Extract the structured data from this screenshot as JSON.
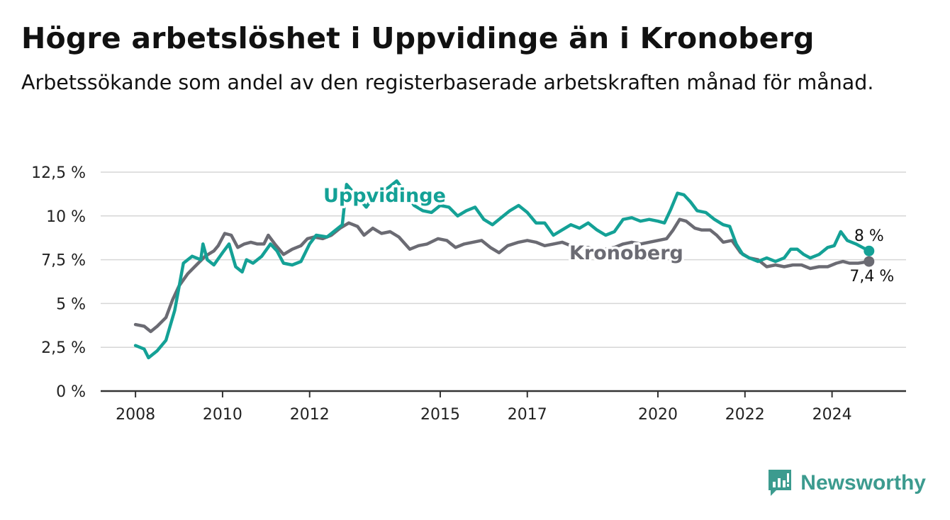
{
  "title": "Högre arbetslöshet i Uppvidinge än i Kronoberg",
  "subtitle": "Arbetssökande som andel av den registerbaserade arbetskraften månad för månad.",
  "brand": {
    "name": "Newsworthy",
    "icon": "bar-chart-logo-icon",
    "color": "#3c9b8f"
  },
  "chart_data": {
    "type": "line",
    "x_ticks": [
      {
        "value": 2008,
        "label": "2008"
      },
      {
        "value": 2010,
        "label": "2010"
      },
      {
        "value": 2012,
        "label": "2012"
      },
      {
        "value": 2015,
        "label": "2015"
      },
      {
        "value": 2017,
        "label": "2017"
      },
      {
        "value": 2020,
        "label": "2020"
      },
      {
        "value": 2022,
        "label": "2022"
      },
      {
        "value": 2024,
        "label": "2024"
      }
    ],
    "y_ticks": [
      {
        "value": 0,
        "label": "0 %"
      },
      {
        "value": 2.5,
        "label": "2,5 %"
      },
      {
        "value": 5,
        "label": "5 %"
      },
      {
        "value": 7.5,
        "label": "7,5 %"
      },
      {
        "value": 10,
        "label": "10 %"
      },
      {
        "value": 12.5,
        "label": "12,5 %"
      }
    ],
    "ylim": [
      0,
      12.5
    ],
    "xlim": [
      2007.2,
      2025.7
    ],
    "grid": true,
    "series": [
      {
        "name": "Uppvidinge",
        "color": "#14a196",
        "end_label": "8 %",
        "points": [
          [
            2008.0,
            2.6
          ],
          [
            2008.2,
            2.4
          ],
          [
            2008.3,
            1.9
          ],
          [
            2008.5,
            2.3
          ],
          [
            2008.7,
            2.9
          ],
          [
            2008.9,
            4.6
          ],
          [
            2009.1,
            7.3
          ],
          [
            2009.3,
            7.7
          ],
          [
            2009.5,
            7.5
          ],
          [
            2009.55,
            8.4
          ],
          [
            2009.65,
            7.5
          ],
          [
            2009.8,
            7.2
          ],
          [
            2010.0,
            7.9
          ],
          [
            2010.15,
            8.4
          ],
          [
            2010.3,
            7.1
          ],
          [
            2010.45,
            6.8
          ],
          [
            2010.55,
            7.5
          ],
          [
            2010.7,
            7.3
          ],
          [
            2010.9,
            7.7
          ],
          [
            2011.1,
            8.4
          ],
          [
            2011.25,
            8.0
          ],
          [
            2011.4,
            7.3
          ],
          [
            2011.6,
            7.2
          ],
          [
            2011.8,
            7.4
          ],
          [
            2012.0,
            8.4
          ],
          [
            2012.15,
            8.9
          ],
          [
            2012.4,
            8.8
          ],
          [
            2012.6,
            9.2
          ],
          [
            2012.75,
            9.5
          ],
          [
            2012.85,
            11.8
          ],
          [
            2012.95,
            11.5
          ],
          [
            2013.1,
            11.1
          ],
          [
            2013.3,
            10.5
          ],
          [
            2013.5,
            11.2
          ],
          [
            2013.8,
            11.6
          ],
          [
            2014.0,
            12.0
          ],
          [
            2014.2,
            11.3
          ],
          [
            2014.4,
            10.6
          ],
          [
            2014.6,
            10.3
          ],
          [
            2014.8,
            10.2
          ],
          [
            2015.0,
            10.6
          ],
          [
            2015.2,
            10.5
          ],
          [
            2015.4,
            10.0
          ],
          [
            2015.6,
            10.3
          ],
          [
            2015.8,
            10.5
          ],
          [
            2016.0,
            9.8
          ],
          [
            2016.2,
            9.5
          ],
          [
            2016.4,
            9.9
          ],
          [
            2016.6,
            10.3
          ],
          [
            2016.8,
            10.6
          ],
          [
            2017.0,
            10.2
          ],
          [
            2017.2,
            9.6
          ],
          [
            2017.4,
            9.6
          ],
          [
            2017.6,
            8.9
          ],
          [
            2017.8,
            9.2
          ],
          [
            2018.0,
            9.5
          ],
          [
            2018.2,
            9.3
          ],
          [
            2018.4,
            9.6
          ],
          [
            2018.6,
            9.2
          ],
          [
            2018.8,
            8.9
          ],
          [
            2019.0,
            9.1
          ],
          [
            2019.2,
            9.8
          ],
          [
            2019.4,
            9.9
          ],
          [
            2019.6,
            9.7
          ],
          [
            2019.8,
            9.8
          ],
          [
            2020.0,
            9.7
          ],
          [
            2020.15,
            9.6
          ],
          [
            2020.3,
            10.4
          ],
          [
            2020.45,
            11.3
          ],
          [
            2020.6,
            11.2
          ],
          [
            2020.75,
            10.8
          ],
          [
            2020.9,
            10.3
          ],
          [
            2021.1,
            10.2
          ],
          [
            2021.3,
            9.8
          ],
          [
            2021.5,
            9.5
          ],
          [
            2021.65,
            9.4
          ],
          [
            2021.8,
            8.4
          ],
          [
            2021.95,
            7.8
          ],
          [
            2022.1,
            7.6
          ],
          [
            2022.3,
            7.4
          ],
          [
            2022.5,
            7.6
          ],
          [
            2022.7,
            7.4
          ],
          [
            2022.9,
            7.6
          ],
          [
            2023.05,
            8.1
          ],
          [
            2023.2,
            8.1
          ],
          [
            2023.35,
            7.8
          ],
          [
            2023.5,
            7.6
          ],
          [
            2023.7,
            7.8
          ],
          [
            2023.9,
            8.2
          ],
          [
            2024.05,
            8.3
          ],
          [
            2024.2,
            9.1
          ],
          [
            2024.35,
            8.6
          ],
          [
            2024.55,
            8.4
          ],
          [
            2024.7,
            8.2
          ],
          [
            2024.85,
            8.0
          ]
        ]
      },
      {
        "name": "Kronoberg",
        "color": "#6b6b73",
        "end_label": "7,4 %",
        "points": [
          [
            2008.0,
            3.8
          ],
          [
            2008.2,
            3.7
          ],
          [
            2008.35,
            3.4
          ],
          [
            2008.5,
            3.7
          ],
          [
            2008.7,
            4.2
          ],
          [
            2008.85,
            5.2
          ],
          [
            2009.0,
            6.0
          ],
          [
            2009.2,
            6.7
          ],
          [
            2009.4,
            7.2
          ],
          [
            2009.6,
            7.7
          ],
          [
            2009.8,
            8.0
          ],
          [
            2009.9,
            8.3
          ],
          [
            2010.05,
            9.0
          ],
          [
            2010.2,
            8.9
          ],
          [
            2010.35,
            8.2
          ],
          [
            2010.5,
            8.4
          ],
          [
            2010.65,
            8.5
          ],
          [
            2010.8,
            8.4
          ],
          [
            2010.95,
            8.4
          ],
          [
            2011.05,
            8.9
          ],
          [
            2011.2,
            8.4
          ],
          [
            2011.4,
            7.8
          ],
          [
            2011.6,
            8.1
          ],
          [
            2011.8,
            8.3
          ],
          [
            2011.95,
            8.7
          ],
          [
            2012.1,
            8.8
          ],
          [
            2012.3,
            8.7
          ],
          [
            2012.5,
            8.9
          ],
          [
            2012.7,
            9.3
          ],
          [
            2012.9,
            9.6
          ],
          [
            2013.1,
            9.4
          ],
          [
            2013.25,
            8.9
          ],
          [
            2013.45,
            9.3
          ],
          [
            2013.65,
            9.0
          ],
          [
            2013.85,
            9.1
          ],
          [
            2014.05,
            8.8
          ],
          [
            2014.3,
            8.1
          ],
          [
            2014.5,
            8.3
          ],
          [
            2014.7,
            8.4
          ],
          [
            2014.95,
            8.7
          ],
          [
            2015.15,
            8.6
          ],
          [
            2015.35,
            8.2
          ],
          [
            2015.55,
            8.4
          ],
          [
            2015.75,
            8.5
          ],
          [
            2015.95,
            8.6
          ],
          [
            2016.15,
            8.2
          ],
          [
            2016.35,
            7.9
          ],
          [
            2016.55,
            8.3
          ],
          [
            2016.8,
            8.5
          ],
          [
            2017.0,
            8.6
          ],
          [
            2017.2,
            8.5
          ],
          [
            2017.4,
            8.3
          ],
          [
            2017.6,
            8.4
          ],
          [
            2017.8,
            8.5
          ],
          [
            2018.0,
            8.3
          ],
          [
            2018.2,
            8.1
          ],
          [
            2018.4,
            8.2
          ],
          [
            2018.6,
            8.0
          ],
          [
            2018.8,
            8.1
          ],
          [
            2019.0,
            8.2
          ],
          [
            2019.2,
            8.4
          ],
          [
            2019.4,
            8.5
          ],
          [
            2019.6,
            8.4
          ],
          [
            2019.8,
            8.5
          ],
          [
            2020.0,
            8.6
          ],
          [
            2020.2,
            8.7
          ],
          [
            2020.35,
            9.2
          ],
          [
            2020.5,
            9.8
          ],
          [
            2020.65,
            9.7
          ],
          [
            2020.85,
            9.3
          ],
          [
            2021.0,
            9.2
          ],
          [
            2021.2,
            9.2
          ],
          [
            2021.35,
            8.9
          ],
          [
            2021.5,
            8.5
          ],
          [
            2021.7,
            8.6
          ],
          [
            2021.9,
            7.9
          ],
          [
            2022.1,
            7.6
          ],
          [
            2022.3,
            7.5
          ],
          [
            2022.5,
            7.1
          ],
          [
            2022.7,
            7.2
          ],
          [
            2022.9,
            7.1
          ],
          [
            2023.1,
            7.2
          ],
          [
            2023.3,
            7.2
          ],
          [
            2023.5,
            7.0
          ],
          [
            2023.7,
            7.1
          ],
          [
            2023.9,
            7.1
          ],
          [
            2024.1,
            7.3
          ],
          [
            2024.25,
            7.4
          ],
          [
            2024.4,
            7.3
          ],
          [
            2024.6,
            7.3
          ],
          [
            2024.85,
            7.4
          ]
        ]
      }
    ]
  }
}
